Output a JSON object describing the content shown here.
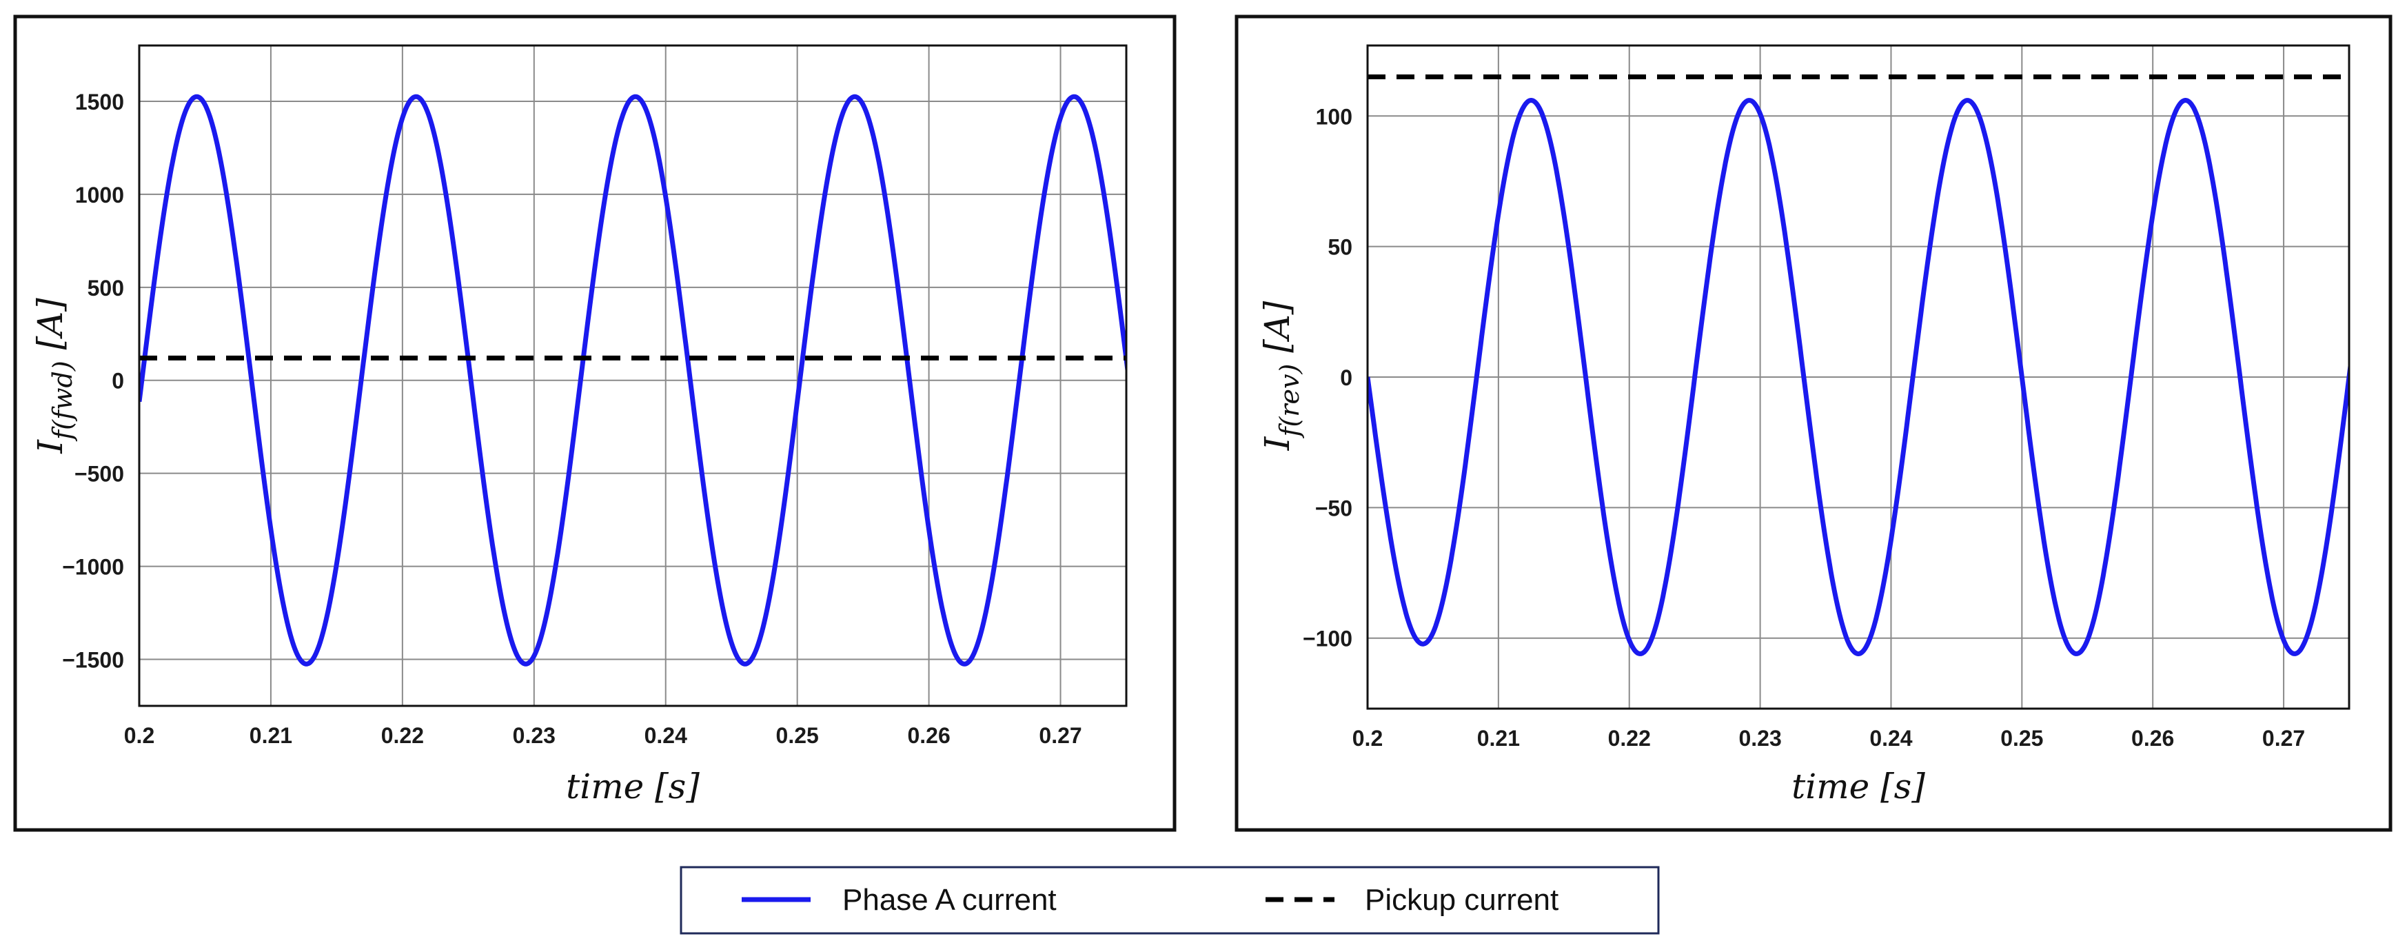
{
  "chart_data": [
    {
      "type": "line",
      "xlabel": "time [s]",
      "ylabel": "I_f(fwd) [A]",
      "ylabel_main": "I",
      "ylabel_sub": "f(fwd)",
      "ylabel_unit": "[A]",
      "xlim": [
        0.2,
        0.275
      ],
      "ylim": [
        -1750,
        1800
      ],
      "grid": true,
      "x_ticks": [
        "0.2",
        "0.21",
        "0.22",
        "0.23",
        "0.24",
        "0.25",
        "0.26",
        "0.27"
      ],
      "y_ticks": [
        "1500",
        "1000",
        "500",
        "0",
        "−500",
        "−1000",
        "−1500"
      ],
      "series": [
        {
          "name": "Phase A current",
          "style": "solid",
          "color": "#1a1aee",
          "waveform": "sinusoid",
          "amplitude": 1525,
          "frequency_hz": 60,
          "phase_zero_crossing_s": 0.2002,
          "x_start": 0.2,
          "x_end": 0.2755,
          "peaks": [
            [
              0.2047,
              1525
            ],
            [
              0.2213,
              1520
            ],
            [
              0.238,
              1520
            ],
            [
              0.2547,
              1520
            ],
            [
              0.2713,
              1520
            ]
          ],
          "troughs": [
            [
              0.213,
              -1515
            ],
            [
              0.2297,
              -1520
            ],
            [
              0.2463,
              -1520
            ],
            [
              0.263,
              -1520
            ]
          ]
        },
        {
          "name": "Pickup current",
          "style": "dashed",
          "color": "#000000",
          "x": [
            0.2,
            0.2755
          ],
          "values": [
            120,
            120
          ]
        }
      ]
    },
    {
      "type": "line",
      "xlabel": "time [s]",
      "ylabel": "I_f(rev) [A]",
      "ylabel_main": "I",
      "ylabel_sub": "f(rev)",
      "ylabel_unit": "[A]",
      "xlim": [
        0.2,
        0.275
      ],
      "ylim": [
        -127,
        127
      ],
      "grid": true,
      "x_ticks": [
        "0.2",
        "0.21",
        "0.22",
        "0.23",
        "0.24",
        "0.25",
        "0.26",
        "0.27"
      ],
      "y_ticks": [
        "100",
        "50",
        "0",
        "−50",
        "−100"
      ],
      "series": [
        {
          "name": "Phase A current",
          "style": "solid",
          "color": "#1a1aee",
          "waveform": "sinusoid",
          "amplitude": 106,
          "frequency_hz": 60,
          "x_start": 0.2,
          "x_end": 0.2755,
          "start_value": 0,
          "first_trough": [
            0.2045,
            -99
          ],
          "peaks": [
            [
              0.2125,
              107
            ],
            [
              0.2292,
              106
            ],
            [
              0.246,
              106
            ],
            [
              0.2625,
              106
            ]
          ],
          "troughs": [
            [
              0.221,
              -105
            ],
            [
              0.2377,
              -105
            ],
            [
              0.2543,
              -105
            ],
            [
              0.2708,
              -105
            ]
          ]
        },
        {
          "name": "Pickup current",
          "style": "dashed",
          "color": "#000000",
          "x": [
            0.2,
            0.2755
          ],
          "values": [
            115,
            115
          ]
        }
      ]
    }
  ],
  "legend": {
    "items": [
      {
        "label": "Phase A current",
        "style": "solid",
        "color": "#1a1aee"
      },
      {
        "label": "Pickup current",
        "style": "dashed",
        "color": "#000000"
      }
    ]
  }
}
